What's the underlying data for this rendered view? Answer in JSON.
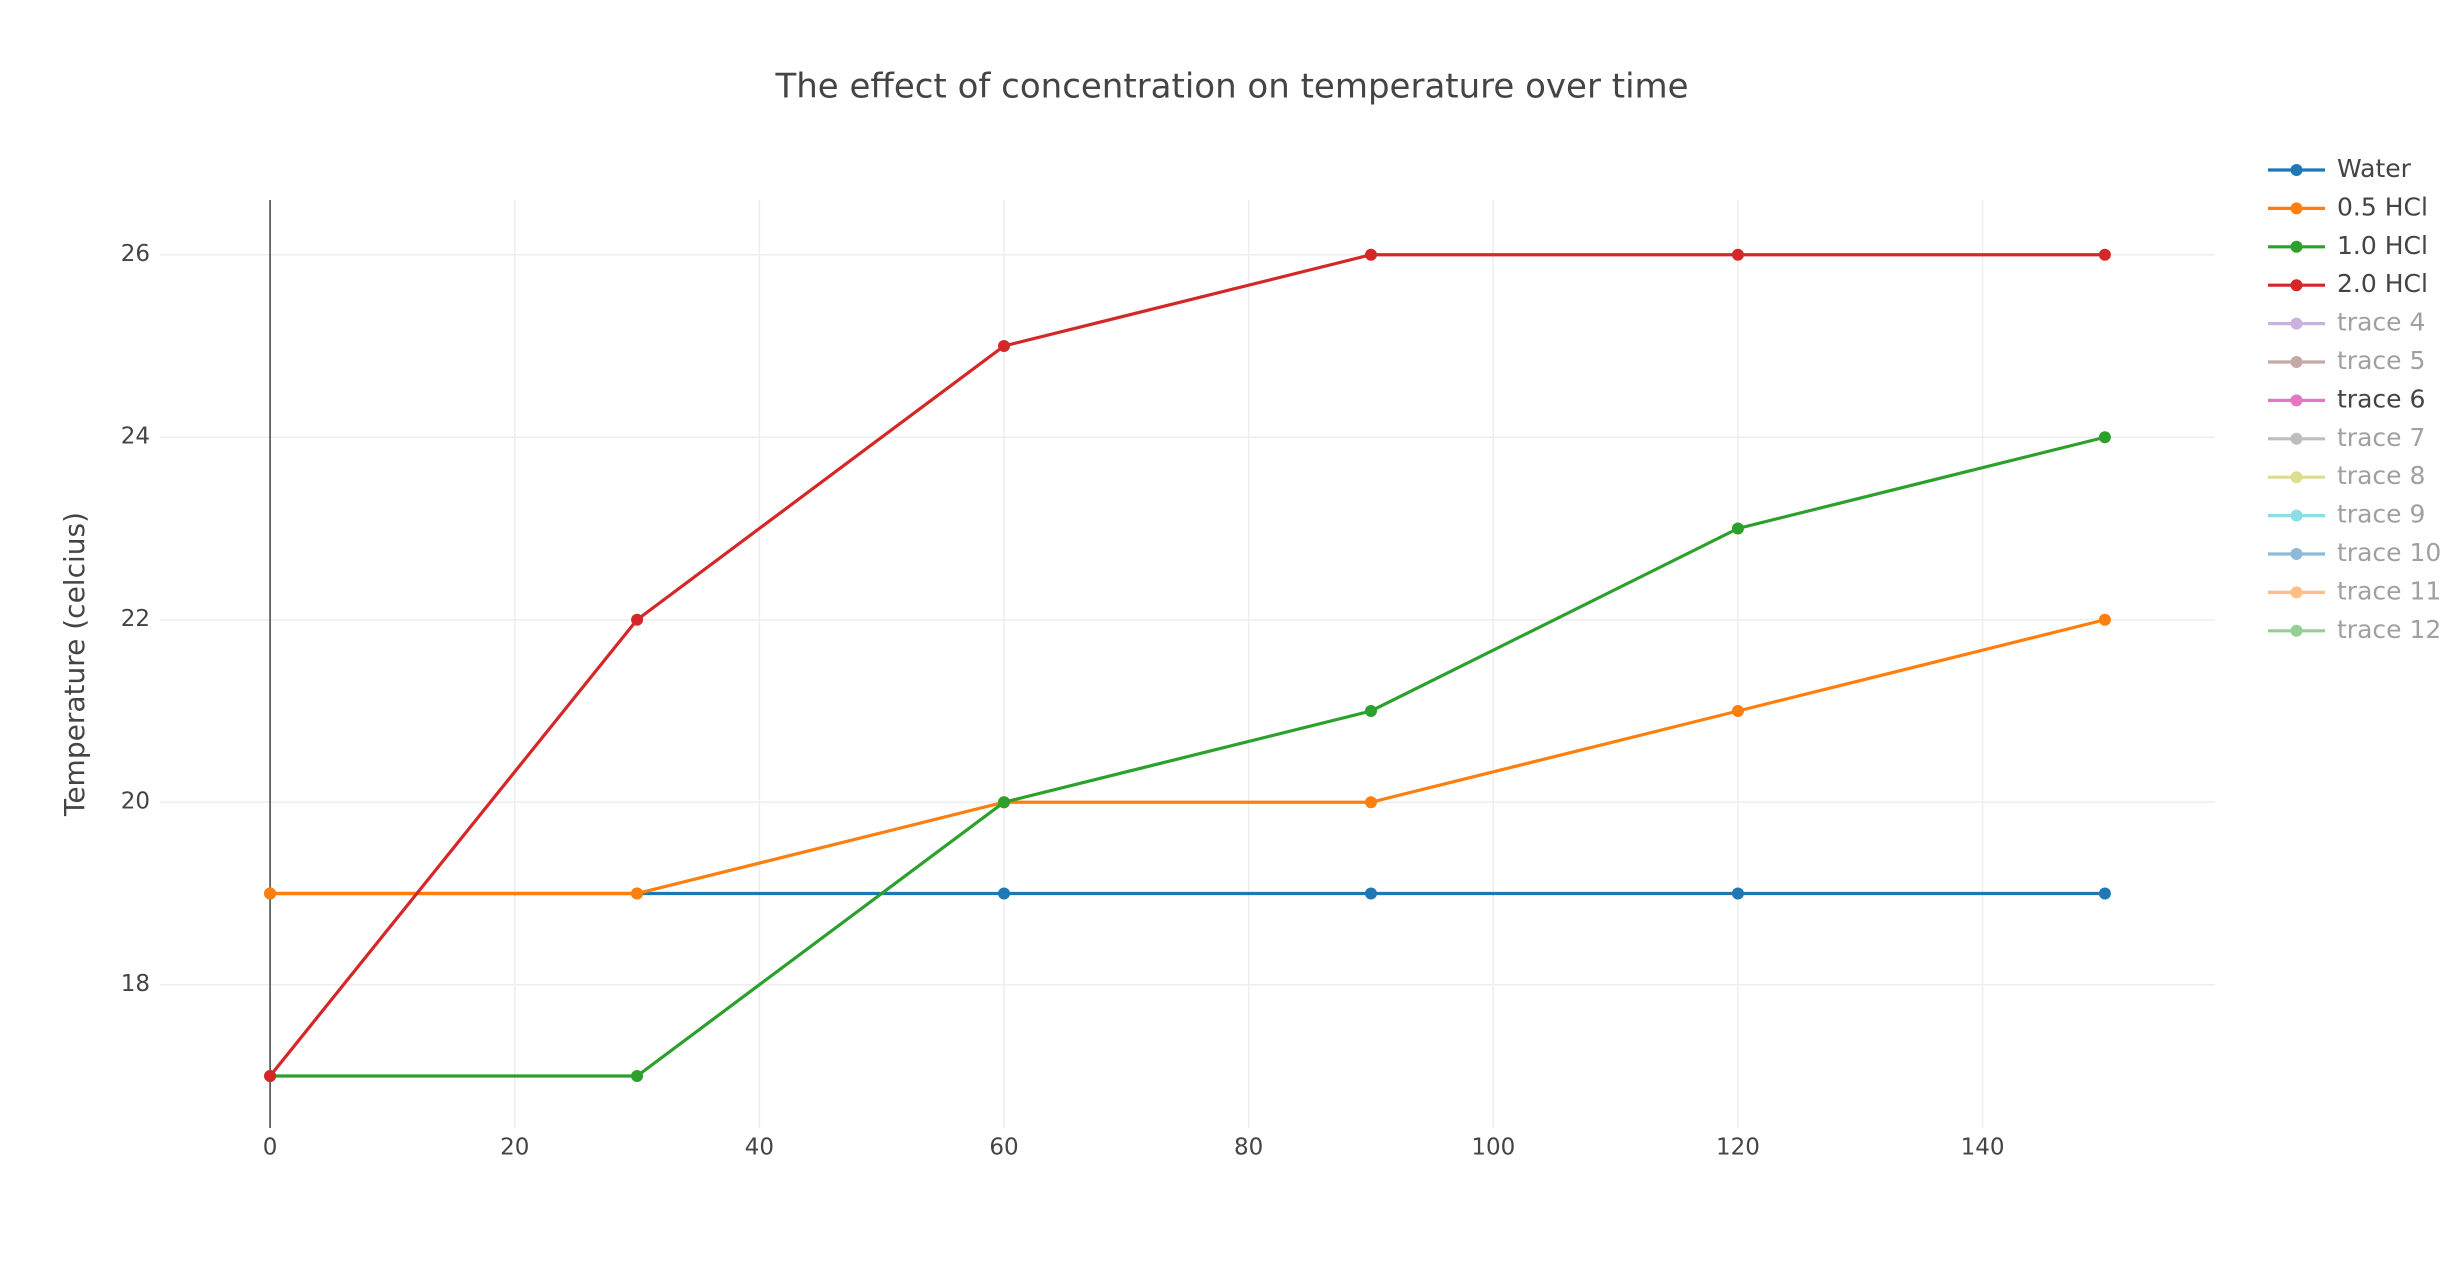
{
  "chart_data": {
    "type": "line",
    "title": "The effect of concentration on temperature over time",
    "y_label": "Temperature (celcius)",
    "x": [
      0,
      30,
      60,
      90,
      120,
      150
    ],
    "series": [
      {
        "name": "Water",
        "color": "#1f77b4",
        "values": [
          19,
          19,
          19,
          19,
          19,
          19
        ]
      },
      {
        "name": "0.5 HCl",
        "color": "#ff7f0e",
        "values": [
          19,
          19,
          20,
          20,
          21,
          22
        ]
      },
      {
        "name": "1.0 HCl",
        "color": "#2ca02c",
        "values": [
          17,
          17,
          20,
          21,
          23,
          24
        ]
      },
      {
        "name": "2.0 HCl",
        "color": "#d62728",
        "values": [
          17,
          22,
          25,
          26,
          26,
          26
        ]
      },
      {
        "name": "trace 4",
        "color": "#9467bd",
        "visible": "legendonly"
      },
      {
        "name": "trace 5",
        "color": "#8c564b",
        "visible": "legendonly"
      },
      {
        "name": "trace 6",
        "color": "#e377c2"
      },
      {
        "name": "trace 7",
        "color": "#7f7f7f",
        "visible": "legendonly"
      },
      {
        "name": "trace 8",
        "color": "#bcbd22",
        "visible": "legendonly"
      },
      {
        "name": "trace 9",
        "color": "#17becf",
        "visible": "legendonly"
      },
      {
        "name": "trace 10",
        "color": "#1f77b4",
        "visible": "legendonly"
      },
      {
        "name": "trace 11",
        "color": "#ff7f0e",
        "visible": "legendonly"
      },
      {
        "name": "trace 12",
        "color": "#2ca02c",
        "visible": "legendonly"
      }
    ],
    "xlim": [
      -9,
      159
    ],
    "ylim": [
      16.43,
      26.6
    ],
    "xticks": [
      0,
      20,
      40,
      60,
      80,
      100,
      120,
      140
    ],
    "yticks": [
      18,
      20,
      22,
      24,
      26
    ],
    "grid": true,
    "legend": "right"
  }
}
